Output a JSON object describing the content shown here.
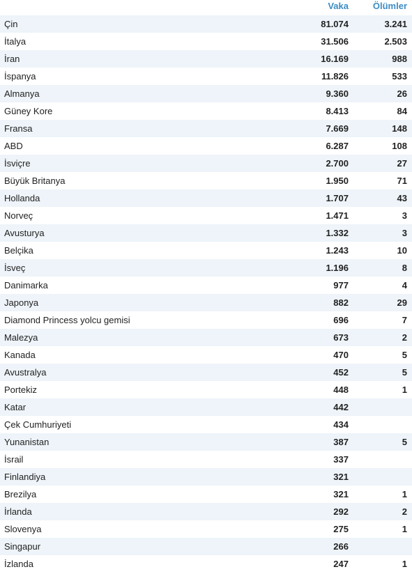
{
  "header": {
    "country_label": "",
    "cases_label": "Vaka",
    "deaths_label": "Ölümler"
  },
  "rows": [
    {
      "country": "Çin",
      "cases": "81.074",
      "deaths": "3.241"
    },
    {
      "country": "İtalya",
      "cases": "31.506",
      "deaths": "2.503"
    },
    {
      "country": "İran",
      "cases": "16.169",
      "deaths": "988"
    },
    {
      "country": "İspanya",
      "cases": "11.826",
      "deaths": "533"
    },
    {
      "country": "Almanya",
      "cases": "9.360",
      "deaths": "26"
    },
    {
      "country": "Güney Kore",
      "cases": "8.413",
      "deaths": "84"
    },
    {
      "country": "Fransa",
      "cases": "7.669",
      "deaths": "148"
    },
    {
      "country": "ABD",
      "cases": "6.287",
      "deaths": "108"
    },
    {
      "country": "İsviçre",
      "cases": "2.700",
      "deaths": "27"
    },
    {
      "country": "Büyük Britanya",
      "cases": "1.950",
      "deaths": "71"
    },
    {
      "country": "Hollanda",
      "cases": "1.707",
      "deaths": "43"
    },
    {
      "country": "Norveç",
      "cases": "1.471",
      "deaths": "3"
    },
    {
      "country": "Avusturya",
      "cases": "1.332",
      "deaths": "3"
    },
    {
      "country": "Belçika",
      "cases": "1.243",
      "deaths": "10"
    },
    {
      "country": "İsveç",
      "cases": "1.196",
      "deaths": "8"
    },
    {
      "country": "Danimarka",
      "cases": "977",
      "deaths": "4"
    },
    {
      "country": "Japonya",
      "cases": "882",
      "deaths": "29"
    },
    {
      "country": "Diamond Princess yolcu gemisi",
      "cases": "696",
      "deaths": "7"
    },
    {
      "country": "Malezya",
      "cases": "673",
      "deaths": "2"
    },
    {
      "country": "Kanada",
      "cases": "470",
      "deaths": "5"
    },
    {
      "country": "Avustralya",
      "cases": "452",
      "deaths": "5"
    },
    {
      "country": "Portekiz",
      "cases": "448",
      "deaths": "1"
    },
    {
      "country": "Katar",
      "cases": "442",
      "deaths": ""
    },
    {
      "country": "Çek Cumhuriyeti",
      "cases": "434",
      "deaths": ""
    },
    {
      "country": "Yunanistan",
      "cases": "387",
      "deaths": "5"
    },
    {
      "country": "İsrail",
      "cases": "337",
      "deaths": ""
    },
    {
      "country": "Finlandiya",
      "cases": "321",
      "deaths": ""
    },
    {
      "country": "Brezilya",
      "cases": "321",
      "deaths": "1"
    },
    {
      "country": "İrlanda",
      "cases": "292",
      "deaths": "2"
    },
    {
      "country": "Slovenya",
      "cases": "275",
      "deaths": "1"
    },
    {
      "country": "Singapur",
      "cases": "266",
      "deaths": ""
    },
    {
      "country": "İzlanda",
      "cases": "247",
      "deaths": "1"
    }
  ],
  "colors": {
    "header_text": "#3d8cc4",
    "stripe": "#eef4f9",
    "text": "#222222"
  }
}
